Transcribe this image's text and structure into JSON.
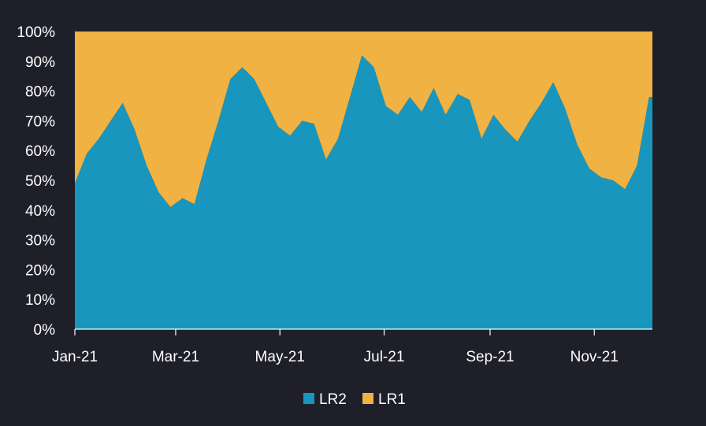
{
  "chart_data": {
    "type": "area",
    "stacked": true,
    "normalized": true,
    "x_unit": "month",
    "x": [
      "2021-01-01",
      "2021-01-08",
      "2021-01-15",
      "2021-01-22",
      "2021-01-29",
      "2021-02-05",
      "2021-02-12",
      "2021-02-19",
      "2021-02-26",
      "2021-03-05",
      "2021-03-12",
      "2021-03-19",
      "2021-03-26",
      "2021-04-02",
      "2021-04-09",
      "2021-04-16",
      "2021-04-23",
      "2021-04-30",
      "2021-05-07",
      "2021-05-14",
      "2021-05-21",
      "2021-05-28",
      "2021-06-04",
      "2021-06-11",
      "2021-06-18",
      "2021-06-25",
      "2021-07-02",
      "2021-07-09",
      "2021-07-16",
      "2021-07-23",
      "2021-07-30",
      "2021-08-06",
      "2021-08-13",
      "2021-08-20",
      "2021-08-27",
      "2021-09-03",
      "2021-09-10",
      "2021-09-17",
      "2021-09-24",
      "2021-10-01",
      "2021-10-08",
      "2021-10-15",
      "2021-10-22",
      "2021-10-29",
      "2021-11-05",
      "2021-11-12",
      "2021-11-19",
      "2021-11-26",
      "2021-12-03"
    ],
    "x_ticks": [
      "Jan-21",
      "Mar-21",
      "May-21",
      "Jul-21",
      "Sep-21",
      "Nov-21"
    ],
    "x_tick_dates": [
      "2021-01-01",
      "2021-03-01",
      "2021-05-01",
      "2021-07-01",
      "2021-09-01",
      "2021-11-01"
    ],
    "x_range": [
      "2021-01-01",
      "2021-12-05"
    ],
    "series": [
      {
        "name": "LR2",
        "color": "#1896bd",
        "values": [
          49,
          59,
          64,
          70,
          76,
          67,
          55,
          46,
          41,
          44,
          42,
          57,
          70,
          84,
          88,
          84,
          76,
          68,
          65,
          70,
          69,
          57,
          64,
          78,
          92,
          88,
          75,
          72,
          78,
          73,
          81,
          72,
          79,
          77,
          64,
          72,
          67,
          63,
          70,
          76,
          83,
          74,
          62,
          54,
          51,
          50,
          47,
          55,
          78
        ]
      },
      {
        "name": "LR1",
        "color": "#f0b243",
        "values": [
          51,
          41,
          36,
          30,
          24,
          33,
          45,
          54,
          59,
          56,
          58,
          43,
          30,
          16,
          12,
          16,
          24,
          32,
          35,
          30,
          31,
          43,
          36,
          22,
          8,
          12,
          25,
          28,
          22,
          27,
          19,
          28,
          21,
          23,
          36,
          28,
          33,
          37,
          30,
          24,
          17,
          26,
          38,
          46,
          49,
          50,
          53,
          45,
          22
        ]
      }
    ],
    "y_ticks": [
      "0%",
      "10%",
      "20%",
      "30%",
      "40%",
      "50%",
      "60%",
      "70%",
      "80%",
      "90%",
      "100%"
    ],
    "ylim": [
      0,
      100
    ],
    "grid": false,
    "legend": {
      "position": "bottom-center",
      "items": [
        "LR2",
        "LR1"
      ]
    },
    "title": "",
    "xlabel": "",
    "ylabel": ""
  },
  "theme": {
    "background": "#1e1f29",
    "text": "#ffffff",
    "axis": "#ffffff"
  }
}
